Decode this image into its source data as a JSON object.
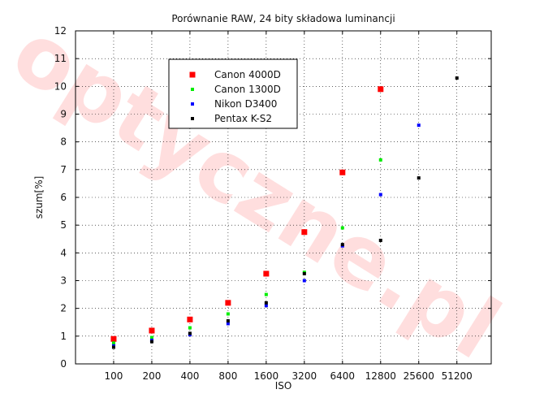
{
  "watermark_text": "optyczne.pl",
  "chart_data": {
    "type": "scatter",
    "title": "Porównanie RAW, 24 bity składowa luminancji",
    "xlabel": "ISO",
    "ylabel": "szum[%]",
    "categories": [
      "100",
      "200",
      "400",
      "800",
      "1600",
      "3200",
      "6400",
      "12800",
      "25600",
      "51200"
    ],
    "ylim": [
      0,
      12
    ],
    "yticks": [
      "0",
      "1",
      "2",
      "3",
      "4",
      "5",
      "6",
      "7",
      "8",
      "9",
      "10",
      "11",
      "12"
    ],
    "grid": true,
    "legend_position": "top-left",
    "series": [
      {
        "name": "Canon 4000D",
        "color": "#ff0000",
        "marker": "large-square",
        "values": [
          0.9,
          1.2,
          1.6,
          2.2,
          3.25,
          4.75,
          6.9,
          9.9,
          null,
          null
        ]
      },
      {
        "name": "Canon 1300D",
        "color": "#00ee00",
        "marker": "small-square",
        "values": [
          0.75,
          0.95,
          1.3,
          1.8,
          2.5,
          3.3,
          4.9,
          7.35,
          null,
          null
        ]
      },
      {
        "name": "Nikon D3400",
        "color": "#0000ff",
        "marker": "small-square",
        "values": [
          0.65,
          0.85,
          1.05,
          1.45,
          2.1,
          3.0,
          4.25,
          6.1,
          8.6,
          null
        ]
      },
      {
        "name": "Pentax K-S2",
        "color": "#000000",
        "marker": "small-square",
        "values": [
          0.6,
          0.8,
          1.1,
          1.55,
          2.2,
          3.25,
          4.3,
          4.45,
          6.7,
          10.3
        ]
      }
    ]
  }
}
